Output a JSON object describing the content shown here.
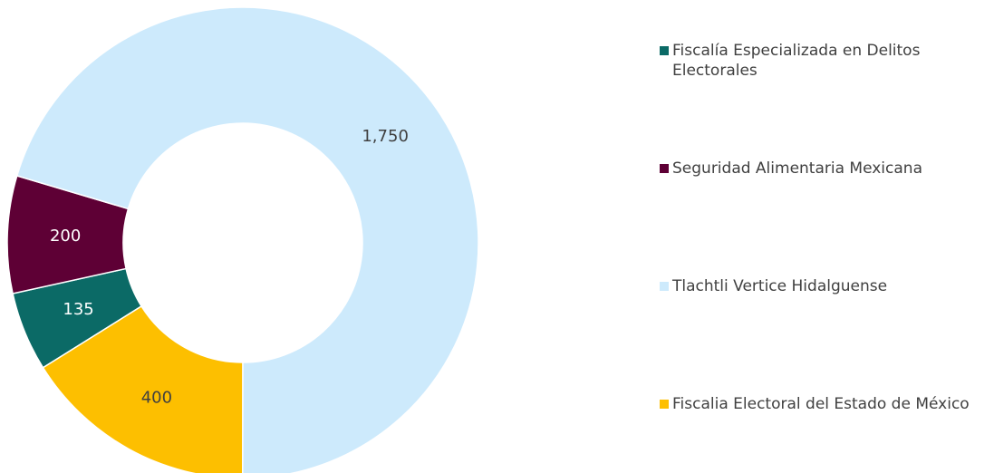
{
  "chart_data": {
    "type": "donut",
    "categories": [
      "Fiscalía Especializada en Delitos Electorales",
      "Seguridad Alimentaria Mexicana",
      "Tlachtli Vertice Hidalguense",
      "Fiscalia Electoral del Estado de México"
    ],
    "values": [
      135,
      200,
      1750,
      400
    ],
    "value_labels": [
      "135",
      "200",
      "1,750",
      "400"
    ],
    "colors": [
      "#0b6a66",
      "#5e0035",
      "#cdeafc",
      "#fdbf00"
    ],
    "legend": "right"
  }
}
